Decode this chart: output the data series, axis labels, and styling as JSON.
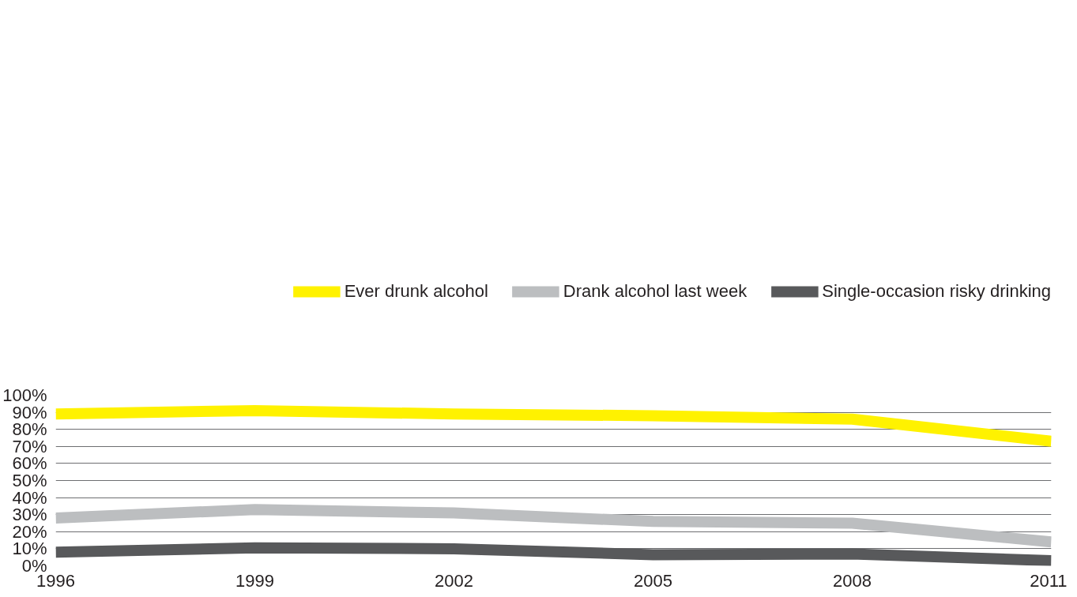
{
  "chart_data": {
    "type": "line",
    "x": [
      1996,
      1999,
      2002,
      2005,
      2008,
      2011
    ],
    "xlim": [
      1996,
      2011
    ],
    "xticks": [
      1996,
      1999,
      2002,
      2005,
      2008,
      2011
    ],
    "ylim": [
      0,
      100
    ],
    "yticks": [
      {
        "value": 0,
        "label": "0%"
      },
      {
        "value": 10,
        "label": "10%"
      },
      {
        "value": 20,
        "label": "20%"
      },
      {
        "value": 30,
        "label": "30%"
      },
      {
        "value": 40,
        "label": "40%"
      },
      {
        "value": 50,
        "label": "50%"
      },
      {
        "value": 60,
        "label": "60%"
      },
      {
        "value": 70,
        "label": "70%"
      },
      {
        "value": 80,
        "label": "80%"
      },
      {
        "value": 90,
        "label": "90%"
      },
      {
        "value": 100,
        "label": "100%"
      }
    ],
    "grid": "y",
    "legend": "top right",
    "line_style": "solid",
    "series": [
      {
        "name": "Ever drunk alcohol",
        "color": "#fff200",
        "values": [
          89,
          91,
          89,
          88,
          86,
          73
        ]
      },
      {
        "name": "Drank alcohol last week",
        "color": "#bcbec0",
        "values": [
          28,
          33,
          31,
          26,
          25,
          14
        ]
      },
      {
        "name": "Single-occasion risky drinking",
        "color": "#58595b",
        "values": [
          8,
          10.5,
          10,
          6.5,
          7,
          3
        ]
      }
    ]
  }
}
